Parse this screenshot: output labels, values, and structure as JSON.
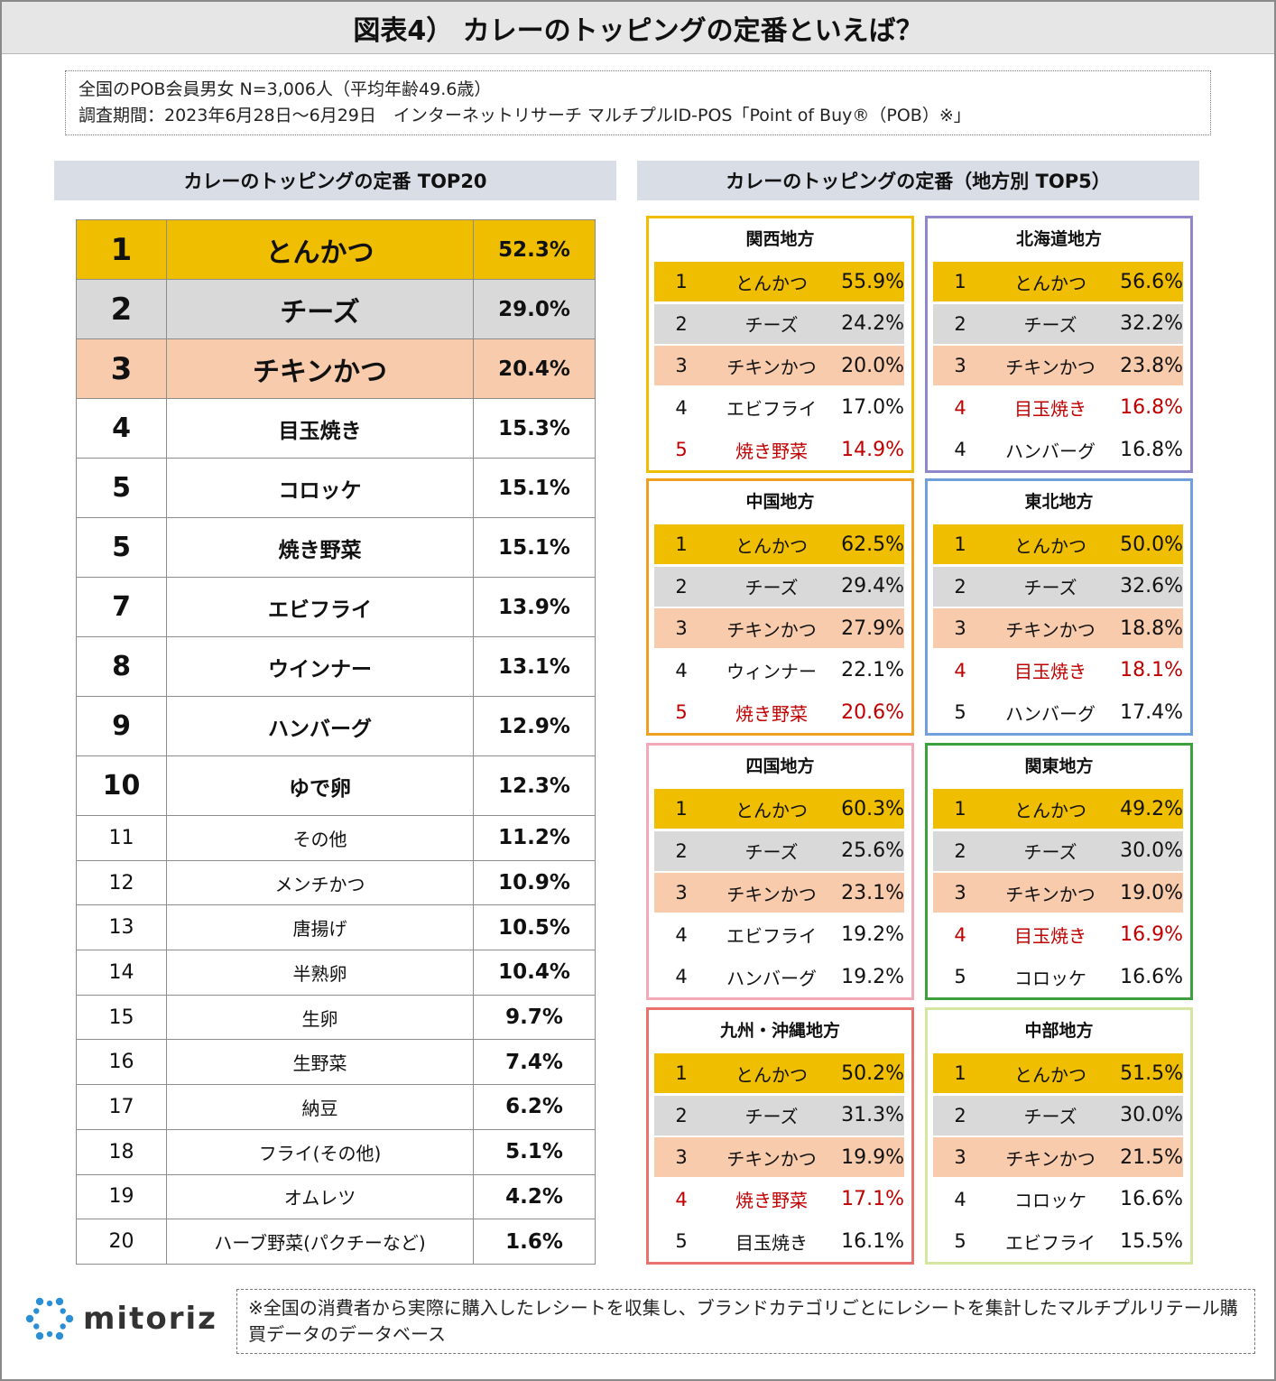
{
  "title": "図表4） カレーのトッピングの定番といえば？",
  "info": {
    "line1": "全国のPOB会員男女 N=3,006人（平均年齢49.6歳）",
    "line2": "調査期間：2023年6月28日～6月29日　インターネットリサーチ マルチプルID-POS「Point of Buy®（POB）※」"
  },
  "left_heading": "カレーのトッピングの定番 TOP20",
  "right_heading": "カレーのトッピングの定番（地方別 TOP5）",
  "chart_data": [
    {
      "type": "table",
      "title": "カレーのトッピングの定番 TOP20",
      "unit": "%",
      "rows": [
        {
          "rank": "1",
          "item": "とんかつ",
          "value": "52.3%"
        },
        {
          "rank": "2",
          "item": "チーズ",
          "value": "29.0%"
        },
        {
          "rank": "3",
          "item": "チキンかつ",
          "value": "20.4%"
        },
        {
          "rank": "4",
          "item": "目玉焼き",
          "value": "15.3%"
        },
        {
          "rank": "5",
          "item": "コロッケ",
          "value": "15.1%"
        },
        {
          "rank": "5",
          "item": "焼き野菜",
          "value": "15.1%"
        },
        {
          "rank": "7",
          "item": "エビフライ",
          "value": "13.9%"
        },
        {
          "rank": "8",
          "item": "ウインナー",
          "value": "13.1%"
        },
        {
          "rank": "9",
          "item": "ハンバーグ",
          "value": "12.9%"
        },
        {
          "rank": "10",
          "item": "ゆで卵",
          "value": "12.3%"
        },
        {
          "rank": "11",
          "item": "その他",
          "value": "11.2%"
        },
        {
          "rank": "12",
          "item": "メンチかつ",
          "value": "10.9%"
        },
        {
          "rank": "13",
          "item": "唐揚げ",
          "value": "10.5%"
        },
        {
          "rank": "14",
          "item": "半熟卵",
          "value": "10.4%"
        },
        {
          "rank": "15",
          "item": "生卵",
          "value": "9.7%"
        },
        {
          "rank": "16",
          "item": "生野菜",
          "value": "7.4%"
        },
        {
          "rank": "17",
          "item": "納豆",
          "value": "6.2%"
        },
        {
          "rank": "18",
          "item": "フライ(その他)",
          "value": "5.1%"
        },
        {
          "rank": "19",
          "item": "オムレツ",
          "value": "4.2%"
        },
        {
          "rank": "20",
          "item": "ハーブ野菜(パクチーなど)",
          "value": "1.6%"
        }
      ]
    },
    {
      "type": "table",
      "title": "カレーのトッピングの定番（地方別 TOP5）",
      "unit": "%",
      "regions": [
        {
          "name": "関西地方",
          "border": "#f0be00",
          "rows": [
            {
              "rank": "1",
              "item": "とんかつ",
              "value": "55.9%"
            },
            {
              "rank": "2",
              "item": "チーズ",
              "value": "24.2%"
            },
            {
              "rank": "3",
              "item": "チキンかつ",
              "value": "20.0%"
            },
            {
              "rank": "4",
              "item": "エビフライ",
              "value": "17.0%"
            },
            {
              "rank": "5",
              "item": "焼き野菜",
              "value": "14.9%",
              "highlight": true
            }
          ]
        },
        {
          "name": "北海道地方",
          "border": "#8f87c9",
          "rows": [
            {
              "rank": "1",
              "item": "とんかつ",
              "value": "56.6%"
            },
            {
              "rank": "2",
              "item": "チーズ",
              "value": "32.2%"
            },
            {
              "rank": "3",
              "item": "チキンかつ",
              "value": "23.8%"
            },
            {
              "rank": "4",
              "item": "目玉焼き",
              "value": "16.8%",
              "highlight": true
            },
            {
              "rank": "4",
              "item": "ハンバーグ",
              "value": "16.8%"
            }
          ]
        },
        {
          "name": "中国地方",
          "border": "#f0a020",
          "rows": [
            {
              "rank": "1",
              "item": "とんかつ",
              "value": "62.5%"
            },
            {
              "rank": "2",
              "item": "チーズ",
              "value": "29.4%"
            },
            {
              "rank": "3",
              "item": "チキンかつ",
              "value": "27.9%"
            },
            {
              "rank": "4",
              "item": "ウィンナー",
              "value": "22.1%"
            },
            {
              "rank": "5",
              "item": "焼き野菜",
              "value": "20.6%",
              "highlight": true
            }
          ]
        },
        {
          "name": "東北地方",
          "border": "#6fa0dc",
          "rows": [
            {
              "rank": "1",
              "item": "とんかつ",
              "value": "50.0%"
            },
            {
              "rank": "2",
              "item": "チーズ",
              "value": "32.6%"
            },
            {
              "rank": "3",
              "item": "チキンかつ",
              "value": "18.8%"
            },
            {
              "rank": "4",
              "item": "目玉焼き",
              "value": "18.1%",
              "highlight": true
            },
            {
              "rank": "5",
              "item": "ハンバーグ",
              "value": "17.4%"
            }
          ]
        },
        {
          "name": "四国地方",
          "border": "#f4a9b8",
          "rows": [
            {
              "rank": "1",
              "item": "とんかつ",
              "value": "60.3%"
            },
            {
              "rank": "2",
              "item": "チーズ",
              "value": "25.6%"
            },
            {
              "rank": "3",
              "item": "チキンかつ",
              "value": "23.1%"
            },
            {
              "rank": "4",
              "item": "エビフライ",
              "value": "19.2%"
            },
            {
              "rank": "4",
              "item": "ハンバーグ",
              "value": "19.2%"
            }
          ]
        },
        {
          "name": "関東地方",
          "border": "#3ca03c",
          "rows": [
            {
              "rank": "1",
              "item": "とんかつ",
              "value": "49.2%"
            },
            {
              "rank": "2",
              "item": "チーズ",
              "value": "30.0%"
            },
            {
              "rank": "3",
              "item": "チキンかつ",
              "value": "19.0%"
            },
            {
              "rank": "4",
              "item": "目玉焼き",
              "value": "16.9%",
              "highlight": true
            },
            {
              "rank": "5",
              "item": "コロッケ",
              "value": "16.6%"
            }
          ]
        },
        {
          "name": "九州・沖縄地方",
          "border": "#e8736e",
          "rows": [
            {
              "rank": "1",
              "item": "とんかつ",
              "value": "50.2%"
            },
            {
              "rank": "2",
              "item": "チーズ",
              "value": "31.3%"
            },
            {
              "rank": "3",
              "item": "チキンかつ",
              "value": "19.9%"
            },
            {
              "rank": "4",
              "item": "焼き野菜",
              "value": "17.1%",
              "highlight": true
            },
            {
              "rank": "5",
              "item": "目玉焼き",
              "value": "16.1%"
            }
          ]
        },
        {
          "name": "中部地方",
          "border": "#d4e6a0",
          "rows": [
            {
              "rank": "1",
              "item": "とんかつ",
              "value": "51.5%"
            },
            {
              "rank": "2",
              "item": "チーズ",
              "value": "30.0%"
            },
            {
              "rank": "3",
              "item": "チキンかつ",
              "value": "21.5%"
            },
            {
              "rank": "4",
              "item": "コロッケ",
              "value": "16.6%"
            },
            {
              "rank": "5",
              "item": "エビフライ",
              "value": "15.5%"
            }
          ]
        }
      ]
    }
  ],
  "colors": {
    "rank1": "#f0be00",
    "rank2": "#d9d9d9",
    "rank3": "#f8cbad",
    "highlight_text": "#c00000",
    "logo": "#2b8fd6"
  },
  "logo": {
    "text": "mitoriz",
    "icon": "mitoriz-logo-icon"
  },
  "footnote": "※全国の消費者から実際に購入したレシートを収集し、ブランドカテゴリごとにレシートを集計したマルチプルリテール購買データのデータベース"
}
